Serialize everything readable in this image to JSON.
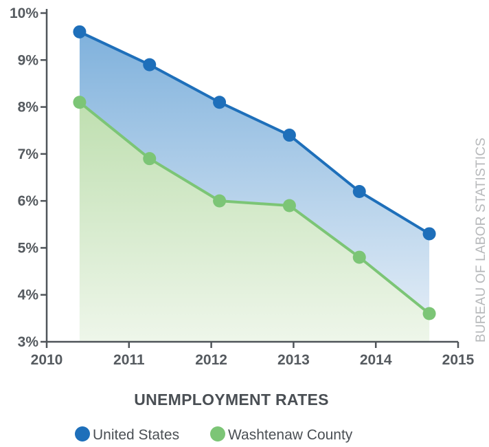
{
  "chart_data": {
    "type": "area",
    "title": "UNEMPLOYMENT RATES",
    "source_note": "BUREAU OF LABOR STATISTICS",
    "x_ticks": [
      "2010",
      "2011",
      "2012",
      "2013",
      "2014",
      "2015"
    ],
    "x_range": [
      2010,
      2015
    ],
    "y_ticks": [
      "3%",
      "4%",
      "5%",
      "6%",
      "7%",
      "8%",
      "9%",
      "10%"
    ],
    "ylim": [
      3,
      10
    ],
    "legend_position": "bottom",
    "series": [
      {
        "name": "United States",
        "color": "#1e6fba",
        "fill_top": "#7fb1dc",
        "fill_bottom": "#e8f0f8",
        "x": [
          2010.4,
          2011.25,
          2012.1,
          2012.95,
          2013.8,
          2014.65
        ],
        "y": [
          9.6,
          8.9,
          8.1,
          7.4,
          6.2,
          5.3
        ]
      },
      {
        "name": "Washtenaw County",
        "color": "#7cc576",
        "fill_top": "#bfdfb0",
        "fill_bottom": "#eef6ea",
        "x": [
          2010.4,
          2011.25,
          2012.1,
          2012.95,
          2013.8,
          2014.65
        ],
        "y": [
          8.1,
          6.9,
          6.0,
          5.9,
          4.8,
          3.6
        ]
      }
    ]
  }
}
